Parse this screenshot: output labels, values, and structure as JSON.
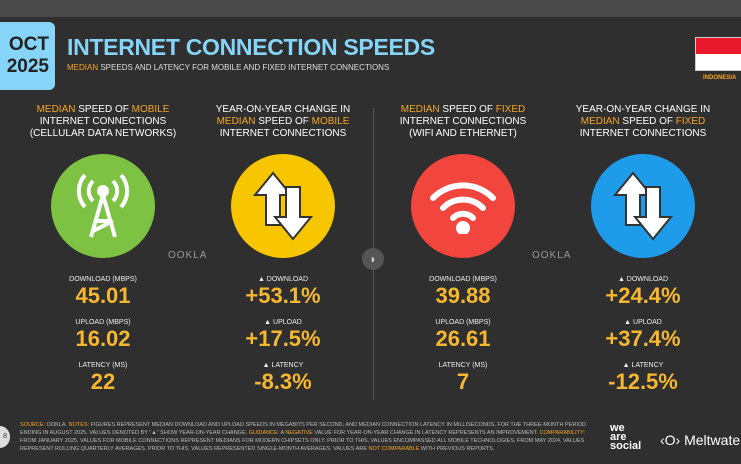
{
  "header": {
    "date_month": "OCT",
    "date_year": "2025",
    "title": "INTERNET CONNECTION SPEEDS",
    "subtitle_accent": "MEDIAN",
    "subtitle_rest": " SPEEDS AND LATENCY FOR MOBILE AND FIXED INTERNET CONNECTIONS",
    "country": "INDONESIA"
  },
  "columns": [
    {
      "h1a": "MEDIAN",
      "h1b": " SPEED OF ",
      "h1c": "MOBILE",
      "h2": "INTERNET CONNECTIONS",
      "h3": "(CELLULAR DATA NETWORKS)",
      "color": "#7dc242",
      "icon": "cell-tower-icon",
      "l1": "DOWNLOAD (MBPS)",
      "v1": "45.01",
      "l2": "UPLOAD (MBPS)",
      "v2": "16.02",
      "l3": "LATENCY (MS)",
      "v3": "22"
    },
    {
      "h1a": "",
      "h1b": "YEAR-ON-YEAR CHANGE IN",
      "h1c": "",
      "h2a": "MEDIAN",
      "h2b": " SPEED OF ",
      "h2c": "MOBILE",
      "h3": "INTERNET CONNECTIONS",
      "color": "#f7c600",
      "icon": "up-down-arrows-icon",
      "l1": "▲ DOWNLOAD",
      "v1": "+53.1%",
      "l2": "▲ UPLOAD",
      "v2": "+17.5%",
      "l3": "▲ LATENCY",
      "v3": "-8.3%"
    },
    {
      "h1a": "MEDIAN",
      "h1b": " SPEED OF ",
      "h1c": "FIXED",
      "h2": "INTERNET CONNECTIONS",
      "h3": "(WIFI AND ETHERNET)",
      "color": "#f2453d",
      "icon": "wifi-icon",
      "l1": "DOWNLOAD (MBPS)",
      "v1": "39.88",
      "l2": "UPLOAD (MBPS)",
      "v2": "26.61",
      "l3": "LATENCY (MS)",
      "v3": "7"
    },
    {
      "h1a": "",
      "h1b": "YEAR-ON-YEAR CHANGE IN",
      "h1c": "",
      "h2a": "MEDIAN",
      "h2b": " SPEED OF ",
      "h2c": "FIXED",
      "h3": "INTERNET CONNECTIONS",
      "color": "#1e9be9",
      "icon": "up-down-arrows-icon",
      "l1": "▲ DOWNLOAD",
      "v1": "+24.4%",
      "l2": "▲ UPLOAD",
      "v2": "+37.4%",
      "l3": "▲ LATENCY",
      "v3": "-12.5%"
    }
  ],
  "ookla": "OOKLA",
  "footer": {
    "source_label": "SOURCE:",
    "source": " OOKLA. ",
    "notes_label": "NOTES:",
    "notes": " FIGURES REPRESENT MEDIAN DOWNLOAD AND UPLOAD SPEEDS IN MEGABITS PER SECOND, AND MEDIAN CONNECTION LATENCY IN MILLISECONDS, FOR THE THREE-MONTH PERIOD ENDING IN AUGUST 2025. VALUES DENOTED BY \"▲\" SHOW YEAR-ON-YEAR CHANGE. ",
    "guidance_label": "GUIDANCE:",
    "guidance_a": " A ",
    "negative": "NEGATIVE",
    "guidance_b": " VALUE FOR YEAR-ON-YEAR CHANGE IN LATENCY REPRESENTS AN IMPROVEMENT. ",
    "comp_label": "COMPARABILITY:",
    "comp": " FROM JANUARY 2025, VALUES FOR MOBILE CONNECTIONS REPRESENT MEDIANS FOR MODERN CHIPSETS ONLY. PRIOR TO THIS, VALUES ENCOMPASSED ALL MOBILE TECHNOLOGIES. FROM MAY 2024, VALUES REPRESENT ROLLING QUARTERLY AVERAGES. PRIOR TO THIS, VALUES REPRESENTED SINGLE-MONTH AVERAGES. VALUES ARE ",
    "notcomp": "NOT COMPARABLE",
    "comp_end": " WITH PREVIOUS REPORTS.",
    "page": "8",
    "brand1": "we are social",
    "brand2": "Meltwater"
  }
}
